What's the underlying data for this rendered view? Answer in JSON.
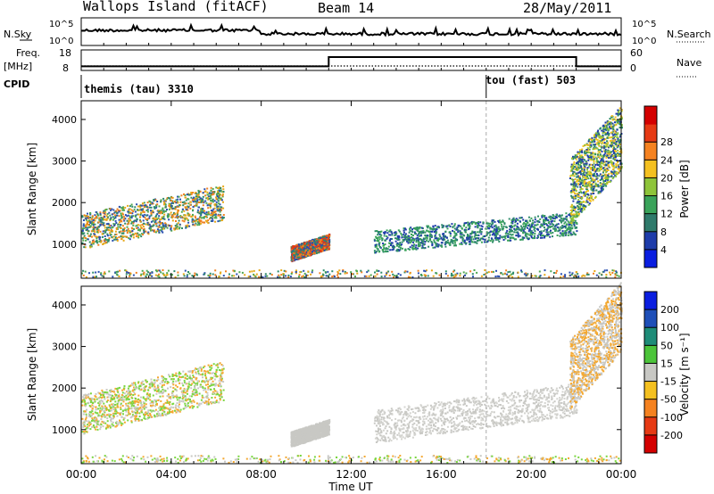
{
  "header": {
    "title": "Wallops Island (fitACF)",
    "beam": "Beam 14",
    "date": "28/May/2011"
  },
  "status_panels": {
    "nsky_label": "N.Sky",
    "nsky_ticks": [
      "10^5",
      "10^0"
    ],
    "nsearch_label": "N.Search",
    "nsearch_ticks": [
      "10^5",
      "10^0"
    ],
    "freq_label_1": "Freq.",
    "freq_label_2": "[MHz]",
    "freq_ticks": [
      "18",
      "8"
    ],
    "nave_label": "Nave",
    "nave_ticks": [
      "60",
      "0"
    ],
    "cpid_label": "CPID",
    "cpid_segments": [
      {
        "label": "themis (tau) 3310",
        "start_hour": 0
      },
      {
        "label": "tou (fast) 503",
        "start_hour": 18
      }
    ],
    "freq_steps": [
      {
        "from": 0,
        "to": 11.0,
        "value": 10.0
      },
      {
        "from": 11.0,
        "to": 22.0,
        "value": 14.5
      },
      {
        "from": 22.0,
        "to": 24.0,
        "value": 10.0
      }
    ],
    "colors": {
      "line": "#000000",
      "dotted": "#000000"
    }
  },
  "chart_data": [
    {
      "type": "heatmap",
      "name": "power",
      "ylabel": "Slant Range [km]",
      "y_ticks": [
        1000,
        2000,
        3000,
        4000
      ],
      "ylim": [
        180,
        4450
      ],
      "xlim": [
        0,
        24
      ],
      "colorbar_label": "Power [dB]",
      "colorbar_ticks": [
        "4",
        "8",
        "12",
        "16",
        "20",
        "24",
        "28"
      ],
      "colorbar_colors": [
        "#0a1ee0",
        "#1e3caa",
        "#2f7a6b",
        "#3aa35a",
        "#8ec43a",
        "#f4c020",
        "#f58220",
        "#e63a14",
        "#d40000"
      ],
      "echo_bands": [
        {
          "x0": 0.0,
          "x1": 6.3,
          "r0": 900,
          "r1": 2300,
          "colors": [
            "#2a4fb0",
            "#2e8b6a",
            "#4fa84f",
            "#e6a817",
            "#f08020"
          ]
        },
        {
          "x0": 9.3,
          "x1": 11.0,
          "r0": 600,
          "r1": 1200,
          "colors": [
            "#2a4fb0",
            "#2e8b6a",
            "#f08020",
            "#e63a14"
          ]
        },
        {
          "x0": 13.0,
          "x1": 22.0,
          "r0": 800,
          "r1": 1700,
          "colors": [
            "#1e3caa",
            "#2e8b6a",
            "#3aa35a"
          ]
        },
        {
          "x0": 21.7,
          "x1": 24.0,
          "r0": 1500,
          "r1": 4100,
          "colors": [
            "#1e3caa",
            "#2e8b6a",
            "#8ec43a",
            "#f4c020"
          ]
        }
      ]
    },
    {
      "type": "heatmap",
      "name": "velocity",
      "ylabel": "Slant Range [km]",
      "xlabel": "Time UT",
      "x_ticks": [
        "00:00",
        "04:00",
        "08:00",
        "12:00",
        "16:00",
        "20:00",
        "00:00"
      ],
      "y_ticks": [
        1000,
        2000,
        3000,
        4000
      ],
      "ylim": [
        180,
        4450
      ],
      "xlim": [
        0,
        24
      ],
      "colorbar_label": "Velocity [m s⁻¹]",
      "colorbar_ticks": [
        "200",
        "100",
        "50",
        "15",
        "-15",
        "-50",
        "-100",
        "-200"
      ],
      "colorbar_colors": [
        "#0a1ee0",
        "#1e4fb8",
        "#1e8c78",
        "#4cc43a",
        "#c8c8c4",
        "#f4c020",
        "#f58220",
        "#e63a14",
        "#d40000"
      ],
      "echo_bands": [
        {
          "x0": 0.0,
          "x1": 6.3,
          "r0": 900,
          "r1": 2500,
          "colors": [
            "#c8c8c4",
            "#f4a830",
            "#7ad640"
          ]
        },
        {
          "x0": 9.3,
          "x1": 11.0,
          "r0": 600,
          "r1": 1200,
          "colors": [
            "#c8c8c4"
          ]
        },
        {
          "x0": 13.0,
          "x1": 22.0,
          "r0": 700,
          "r1": 2000,
          "colors": [
            "#c8c8c4",
            "#d4d4d0"
          ]
        },
        {
          "x0": 21.7,
          "x1": 24.0,
          "r0": 1500,
          "r1": 4300,
          "colors": [
            "#c8c8c4",
            "#f4a830"
          ]
        }
      ]
    }
  ]
}
